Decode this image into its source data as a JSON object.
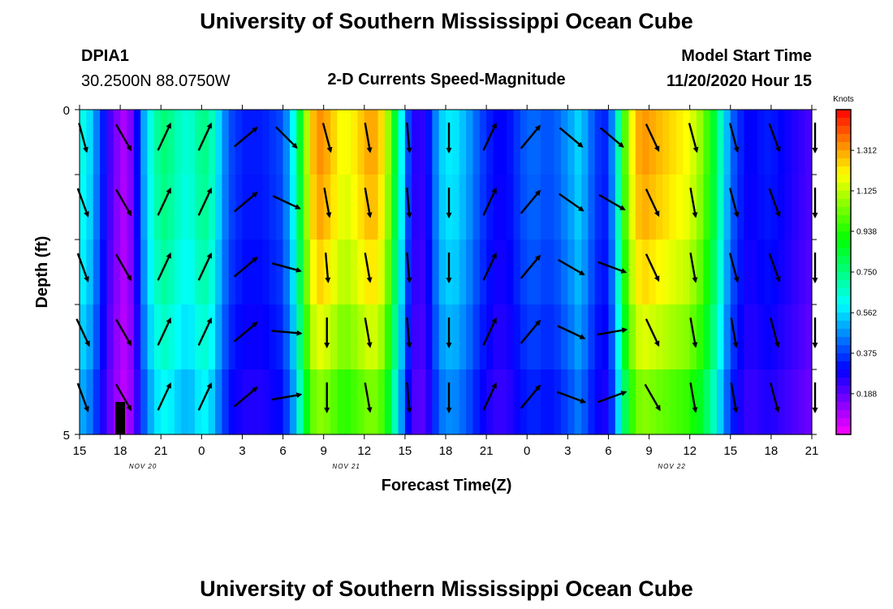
{
  "header": {
    "title": "University of Southern Mississippi Ocean Cube",
    "station": "DPIA1",
    "coords": "30.2500N 88.0750W",
    "subtitle": "2-D Currents Speed-Magnitude",
    "model_start_label": "Model Start Time",
    "model_start_value": "11/20/2020 Hour 15",
    "footer_title": "University of Southern Mississippi Ocean Cube"
  },
  "chart_data": {
    "type": "heatmap",
    "title": "2-D Currents Speed-Magnitude",
    "xlabel": "Forecast Time(Z)",
    "ylabel": "Depth (ft)",
    "x_tick_labels": [
      "15",
      "18",
      "21",
      "0",
      "3",
      "6",
      "9",
      "12",
      "15",
      "18",
      "21",
      "0",
      "3",
      "6",
      "9",
      "12",
      "15",
      "18",
      "21"
    ],
    "x_date_labels": [
      "NOV 20",
      "NOV 21",
      "NOV 22"
    ],
    "x_hours_range": [
      0,
      54
    ],
    "y_tick_labels": [
      "0",
      "5"
    ],
    "ylim": [
      0,
      5
    ],
    "depth_levels": 5,
    "colorbar": {
      "title": "Knots",
      "range": [
        0,
        1.5
      ],
      "tick_labels": [
        "1.312",
        "1.125",
        "0.938",
        "0.750",
        "0.562",
        "0.375",
        "0.188"
      ],
      "tick_values": [
        1.312,
        1.125,
        0.938,
        0.75,
        0.562,
        0.375,
        0.188
      ]
    },
    "column_hours": [
      0,
      0.5,
      1,
      1.5,
      2,
      2.5,
      3,
      3.5,
      4,
      4.5,
      5,
      5.5,
      6,
      6.5,
      7,
      7.5,
      8,
      8.5,
      9,
      9.5,
      10,
      10.5,
      11,
      11.5,
      12,
      12.5,
      13,
      13.5,
      14,
      14.5,
      15,
      15.5,
      16,
      16.5,
      17,
      17.5,
      18,
      18.5,
      19,
      19.5,
      20,
      20.5,
      21,
      21.5,
      22,
      22.5,
      23,
      23.5,
      24,
      24.5,
      25,
      25.5,
      26,
      26.5,
      27,
      27.5,
      28,
      28.5,
      29,
      29.5,
      30,
      30.5,
      31,
      31.5,
      32,
      32.5,
      33,
      33.5,
      34,
      34.5,
      35,
      35.5,
      36,
      36.5,
      37,
      37.5,
      38,
      38.5,
      39,
      39.5,
      40,
      40.5,
      41,
      41.5,
      42,
      42.5,
      43,
      43.5,
      44,
      44.5,
      45,
      45.5,
      46,
      46.5,
      47,
      47.5,
      48,
      48.5,
      49,
      49.5,
      50,
      50.5,
      51,
      51.5,
      52,
      52.5,
      53,
      53.5
    ],
    "speed_profile_knots": [
      0.62,
      0.56,
      0.45,
      0.33,
      0.22,
      0.15,
      0.1,
      0.15,
      0.3,
      0.5,
      0.63,
      0.72,
      0.76,
      0.73,
      0.68,
      0.65,
      0.66,
      0.72,
      0.74,
      0.68,
      0.56,
      0.45,
      0.38,
      0.35,
      0.33,
      0.33,
      0.33,
      0.34,
      0.36,
      0.38,
      0.46,
      0.6,
      0.85,
      1.1,
      1.28,
      1.33,
      1.3,
      1.25,
      1.2,
      1.19,
      1.22,
      1.26,
      1.3,
      1.3,
      1.24,
      1.08,
      0.85,
      0.6,
      0.38,
      0.26,
      0.25,
      0.32,
      0.45,
      0.55,
      0.58,
      0.57,
      0.53,
      0.48,
      0.42,
      0.37,
      0.33,
      0.3,
      0.3,
      0.32,
      0.36,
      0.4,
      0.42,
      0.42,
      0.4,
      0.4,
      0.42,
      0.46,
      0.5,
      0.55,
      0.5,
      0.42,
      0.36,
      0.34,
      0.45,
      0.7,
      1.0,
      1.2,
      1.3,
      1.32,
      1.3,
      1.28,
      1.26,
      1.24,
      1.22,
      1.2,
      1.15,
      1.08,
      0.98,
      0.85,
      0.68,
      0.52,
      0.4,
      0.34,
      0.3,
      0.3,
      0.32,
      0.33,
      0.32,
      0.3,
      0.28,
      0.26,
      0.24,
      0.22
    ],
    "speed_depth_factor": [
      1.0,
      0.98,
      0.94,
      0.88,
      0.8
    ],
    "vector_hours": [
      0,
      3,
      6,
      9,
      12,
      15,
      18,
      21,
      24,
      27,
      30,
      33,
      36,
      39,
      42,
      45,
      48,
      51,
      54
    ],
    "vector_direction_deg": [
      [
        165,
        160,
        160,
        155,
        160
      ],
      [
        150,
        150,
        150,
        150,
        150
      ],
      [
        25,
        25,
        25,
        25,
        25
      ],
      [
        25,
        25,
        25,
        25,
        25
      ],
      [
        50,
        50,
        50,
        50,
        50
      ],
      [
        135,
        115,
        105,
        95,
        80
      ],
      [
        165,
        170,
        175,
        180,
        180
      ],
      [
        170,
        170,
        170,
        170,
        170
      ],
      [
        175,
        175,
        175,
        175,
        175
      ],
      [
        180,
        180,
        180,
        180,
        180
      ],
      [
        25,
        25,
        25,
        25,
        25
      ],
      [
        40,
        40,
        40,
        40,
        40
      ],
      [
        130,
        125,
        120,
        115,
        110
      ],
      [
        130,
        120,
        110,
        80,
        70
      ],
      [
        155,
        155,
        155,
        155,
        150
      ],
      [
        165,
        170,
        170,
        170,
        170
      ],
      [
        165,
        165,
        165,
        170,
        170
      ],
      [
        160,
        160,
        160,
        165,
        165
      ],
      [
        180,
        180,
        180,
        180,
        180
      ]
    ]
  }
}
